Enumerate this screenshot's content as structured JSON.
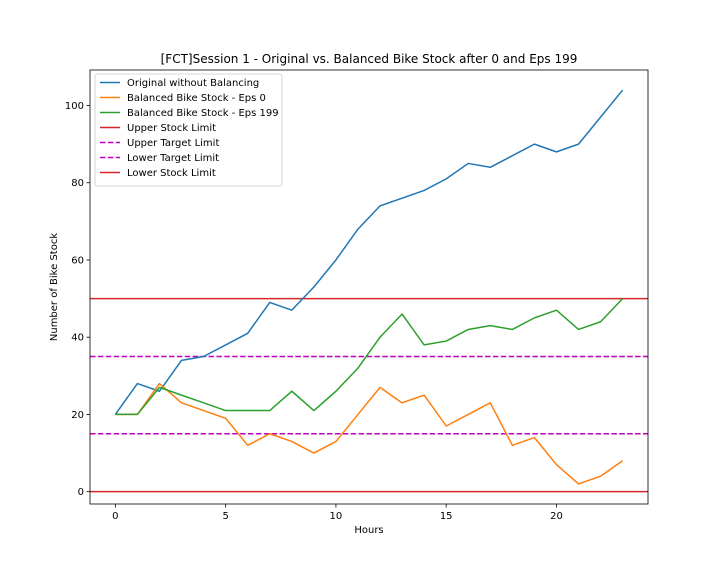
{
  "chart_data": {
    "type": "line",
    "title": "[FCT]Session 1 - Original vs. Balanced Bike Stock after 0 and Eps 199",
    "xlabel": "Hours",
    "ylabel": "Number of Bike Stock",
    "xlim": [
      -1.15,
      24.15
    ],
    "ylim": [
      -3.2,
      109.2
    ],
    "xticks": [
      0,
      5,
      10,
      15,
      20
    ],
    "yticks": [
      0,
      20,
      40,
      60,
      80,
      100
    ],
    "grid": false,
    "legend_position": "top-left",
    "x": [
      0,
      1,
      2,
      3,
      4,
      5,
      6,
      7,
      8,
      9,
      10,
      11,
      12,
      13,
      14,
      15,
      16,
      17,
      18,
      19,
      20,
      21,
      22,
      23
    ],
    "series": [
      {
        "name": "Original without Balancing",
        "color": "#1f77b4",
        "values": [
          20,
          28,
          26,
          34,
          35,
          38,
          41,
          49,
          47,
          53,
          60,
          68,
          74,
          76,
          78,
          81,
          85,
          84,
          87,
          90,
          88,
          90,
          97,
          104
        ]
      },
      {
        "name": "Balanced Bike Stock - Eps 0",
        "color": "#ff7f0e",
        "values": [
          20,
          20,
          28,
          23,
          21,
          19,
          12,
          15,
          13,
          10,
          13,
          20,
          27,
          23,
          25,
          17,
          20,
          23,
          12,
          14,
          7,
          2,
          4,
          8
        ]
      },
      {
        "name": "Balanced Bike Stock - Eps 199",
        "color": "#2ca02c",
        "values": [
          20,
          20,
          27,
          25,
          23,
          21,
          21,
          21,
          26,
          21,
          26,
          32,
          40,
          46,
          38,
          39,
          42,
          43,
          42,
          45,
          47,
          42,
          44,
          50
        ]
      }
    ],
    "hlines": [
      {
        "name": "Upper Stock Limit",
        "value": 50,
        "color": "#d62728",
        "style": "solid"
      },
      {
        "name": "Upper Target Limit",
        "value": 35,
        "color": "#bf00bf",
        "style": "dashed"
      },
      {
        "name": "Lower Target Limit",
        "value": 15,
        "color": "#bf00bf",
        "style": "dashed"
      },
      {
        "name": "Lower Stock Limit",
        "value": 0,
        "color": "#d62728",
        "style": "solid"
      }
    ]
  }
}
